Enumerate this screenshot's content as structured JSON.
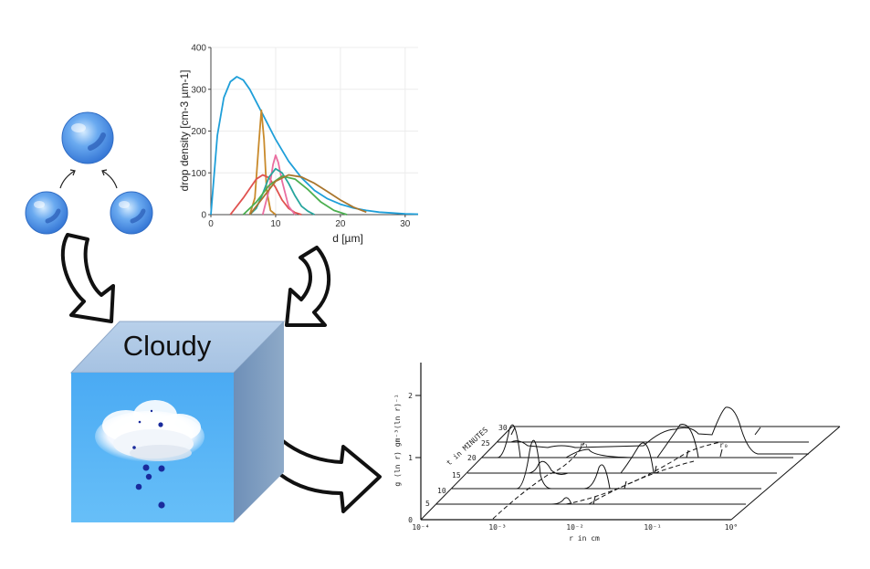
{
  "cube": {
    "label": "Cloudy"
  },
  "chart_data": [
    {
      "type": "line",
      "title": "",
      "xlabel": "d [µm]",
      "ylabel": "drop density [cm-3 µm-1]",
      "xlim": [
        0,
        32
      ],
      "ylim": [
        0,
        400
      ],
      "xticks": [
        "0",
        "10",
        "20",
        "30"
      ],
      "yticks": [
        "0",
        "100",
        "200",
        "300",
        "400"
      ],
      "grid": true,
      "legend": "none",
      "series": [
        {
          "color": "#1f9fd9",
          "x": [
            0,
            1,
            2,
            3,
            4,
            5,
            6,
            8,
            10,
            12,
            14,
            16,
            18,
            20,
            22,
            24,
            26,
            28,
            30,
            32
          ],
          "y": [
            0,
            190,
            280,
            318,
            330,
            322,
            300,
            240,
            180,
            128,
            88,
            58,
            38,
            25,
            16,
            10,
            6,
            4,
            2,
            1
          ]
        },
        {
          "color": "#c98a2b",
          "x": [
            6,
            6.8,
            7.4,
            7.8,
            8.2,
            8.6,
            9.2,
            10
          ],
          "y": [
            0,
            40,
            170,
            250,
            180,
            60,
            10,
            0
          ]
        },
        {
          "color": "#e0524f",
          "x": [
            3,
            5,
            7,
            8,
            9,
            10,
            11,
            12,
            13,
            14
          ],
          "y": [
            0,
            40,
            85,
            95,
            88,
            65,
            35,
            15,
            5,
            0
          ]
        },
        {
          "color": "#ea6ea0",
          "x": [
            8,
            9,
            9.6,
            10,
            10.4,
            11,
            12,
            13
          ],
          "y": [
            0,
            60,
            120,
            142,
            125,
            80,
            20,
            0
          ]
        },
        {
          "color": "#27a59d",
          "x": [
            6,
            7,
            8,
            9,
            10,
            11,
            12,
            13,
            14,
            15,
            16
          ],
          "y": [
            0,
            15,
            50,
            90,
            110,
            100,
            75,
            45,
            20,
            8,
            0
          ]
        },
        {
          "color": "#4caf50",
          "x": [
            5,
            7,
            9,
            11,
            13,
            15,
            17,
            19,
            21
          ],
          "y": [
            0,
            30,
            70,
            92,
            85,
            60,
            30,
            10,
            0
          ]
        },
        {
          "color": "#a9762e",
          "x": [
            6,
            8,
            10,
            12,
            14,
            16,
            18,
            20,
            22,
            24
          ],
          "y": [
            0,
            40,
            80,
            95,
            90,
            75,
            55,
            35,
            18,
            6
          ]
        }
      ]
    },
    {
      "type": "line",
      "title": "",
      "xlabel": "r in cm",
      "ylabel": "g (ln r) gm⁻³(ln r)⁻¹",
      "xticks": [
        "10⁻⁴",
        "10⁻³",
        "10⁻²",
        "10⁻¹",
        "10°"
      ],
      "yticks": [
        "0",
        "1",
        "2"
      ],
      "legend_text": "t in MINUTES",
      "series_labels": [
        "5",
        "10",
        "15",
        "20",
        "25",
        "30"
      ],
      "annotations": [
        "r₁",
        "r₀"
      ]
    }
  ]
}
